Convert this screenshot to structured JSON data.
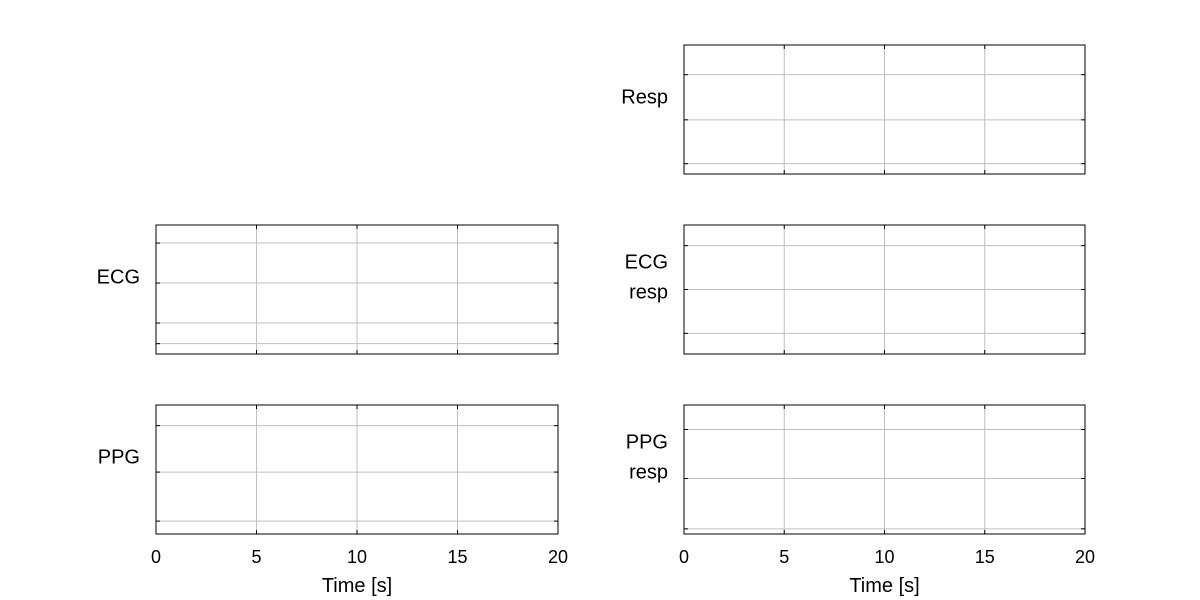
{
  "chart_data": [
    {
      "type": "line",
      "ylabel": [
        "ECG"
      ],
      "xlim": [
        0,
        20
      ],
      "x_ticks": [
        "0",
        "5",
        "10",
        "15",
        "20"
      ],
      "xlabel": "",
      "yticks_frac": [
        0.08,
        0.24,
        0.55,
        0.86
      ],
      "series": []
    },
    {
      "type": "line",
      "ylabel": [
        "PPG"
      ],
      "xlim": [
        0,
        20
      ],
      "x_ticks": [
        "0",
        "5",
        "10",
        "15",
        "20"
      ],
      "xlabel": "Time [s]",
      "yticks_frac": [
        0.1,
        0.48,
        0.84
      ],
      "series": []
    },
    {
      "type": "line",
      "ylabel": [
        "Resp"
      ],
      "xlim": [
        0,
        20
      ],
      "x_ticks": [
        "0",
        "5",
        "10",
        "15",
        "20"
      ],
      "xlabel": "",
      "yticks_frac": [
        0.08,
        0.42,
        0.77
      ],
      "series": []
    },
    {
      "type": "line",
      "ylabel": [
        "ECG",
        "resp"
      ],
      "xlim": [
        0,
        20
      ],
      "x_ticks": [
        "0",
        "5",
        "10",
        "15",
        "20"
      ],
      "xlabel": "",
      "yticks_frac": [
        0.16,
        0.5,
        0.84
      ],
      "series": []
    },
    {
      "type": "line",
      "ylabel": [
        "PPG",
        "resp"
      ],
      "xlim": [
        0,
        20
      ],
      "x_ticks": [
        "0",
        "5",
        "10",
        "15",
        "20"
      ],
      "xlabel": "Time [s]",
      "yticks_frac": [
        0.04,
        0.43,
        0.81
      ],
      "series": []
    }
  ]
}
